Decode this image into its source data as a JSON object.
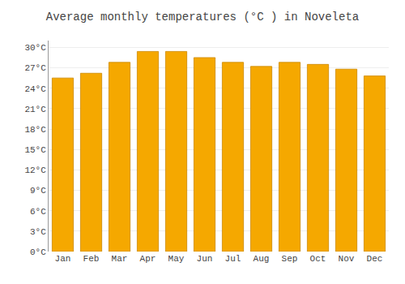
{
  "chart_data": {
    "type": "bar",
    "title": "Average monthly temperatures (°C ) in Noveleta",
    "categories": [
      "Jan",
      "Feb",
      "Mar",
      "Apr",
      "May",
      "Jun",
      "Jul",
      "Aug",
      "Sep",
      "Oct",
      "Nov",
      "Dec"
    ],
    "values": [
      25.5,
      26.2,
      27.8,
      29.4,
      29.4,
      28.5,
      27.8,
      27.2,
      27.8,
      27.5,
      26.8,
      25.8
    ],
    "color": "#F5A800",
    "ylim": [
      0,
      31
    ],
    "yticks": [
      {
        "value": 0,
        "label": "0°C"
      },
      {
        "value": 3,
        "label": "3°C"
      },
      {
        "value": 6,
        "label": "6°C"
      },
      {
        "value": 9,
        "label": "9°C"
      },
      {
        "value": 12,
        "label": "12°C"
      },
      {
        "value": 15,
        "label": "15°C"
      },
      {
        "value": 18,
        "label": "18°C"
      },
      {
        "value": 21,
        "label": "21°C"
      },
      {
        "value": 24,
        "label": "24°C"
      },
      {
        "value": 27,
        "label": "27°C"
      },
      {
        "value": 30,
        "label": "30°C"
      }
    ],
    "grid": true
  }
}
